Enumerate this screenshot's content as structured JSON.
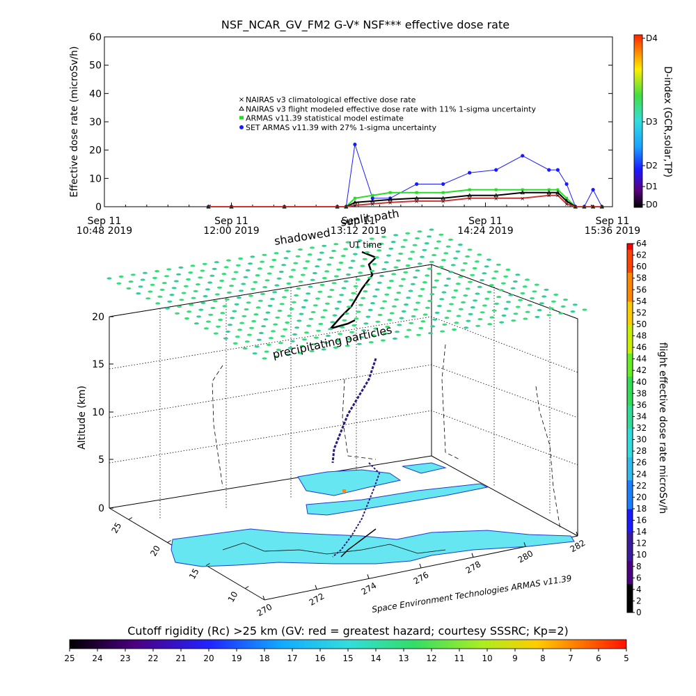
{
  "title": "NSF_NCAR_GV_FM2 G-V* NSF*** effective dose rate",
  "top_panel": {
    "ylabel": "Effective dose rate (microSv/h)",
    "yticks": [
      "0",
      "10",
      "20",
      "30",
      "40",
      "50",
      "60"
    ],
    "xticks": [
      {
        "top": "Sep 11",
        "bottom": "10:48 2019"
      },
      {
        "top": "Sep 11",
        "bottom": "12:00 2019"
      },
      {
        "top": "Sep 11",
        "bottom": "13:12 2019"
      },
      {
        "top": "Sep 11",
        "bottom": "14:24 2019"
      },
      {
        "top": "Sep 11",
        "bottom": "15:36 2019"
      }
    ],
    "xlabel": "UT time",
    "legend": [
      "NAIRAS v3 climatological effective dose rate",
      "NAIRAS v3 flight modeled effective dose rate with 11% 1-sigma uncertainty",
      "ARMAS v11.39 statistical model estimate",
      "SET ARMAS v11.39 with 27% 1-sigma uncertainty"
    ],
    "dindex_label": "D-index (GCR,solar,TP)",
    "dindex_ticks": [
      "D4",
      "D3",
      "D2",
      "D1",
      "D0"
    ]
  },
  "bottom_panel": {
    "zlabel": "Altitude (km)",
    "zticks": [
      "0",
      "5",
      "10",
      "15",
      "20"
    ],
    "lon_ticks": [
      "270",
      "272",
      "274",
      "276",
      "278",
      "280",
      "282"
    ],
    "lat_ticks": [
      "10",
      "15",
      "20",
      "25"
    ],
    "credit": "Space Environment Technologies ARMAS v11.39",
    "annot_shadowed": "shadowed",
    "annot_sunlit": "sunlit path",
    "annot_precip": "precipitating particles",
    "colorbar_label": "flight effective dose rate microSv/h",
    "colorbar_ticks": [
      "0",
      "2",
      "4",
      "6",
      "8",
      "10",
      "12",
      "14",
      "16",
      "18",
      "20",
      "22",
      "24",
      "26",
      "28",
      "30",
      "32",
      "34",
      "36",
      "38",
      "40",
      "42",
      "44",
      "46",
      "48",
      "50",
      "52",
      "54",
      "56",
      "58",
      "60",
      "62",
      "64"
    ]
  },
  "rc_bar": {
    "label": "Cutoff rigidity (Rc) >25 km (GV: red = greatest hazard; courtesy SSSRC; Kp=2)",
    "ticks": [
      "25",
      "24",
      "23",
      "22",
      "21",
      "20",
      "19",
      "18",
      "17",
      "16",
      "15",
      "14",
      "13",
      "12",
      "11",
      "10",
      "9",
      "8",
      "7",
      "6",
      "5"
    ]
  },
  "colors": {
    "set_armas": "#1a1aff",
    "armas_model": "#22dd22",
    "nairas_flight": "#000000",
    "nairas_clim": "#cc3333",
    "grid_points": "#33dd77",
    "map_fill": "#66e6f0"
  },
  "chart_data": {
    "type": "line",
    "x_unit": "UT time, Sep 11 2019",
    "x": [
      "11:47",
      "12:00",
      "12:30",
      "13:00",
      "13:05",
      "13:10",
      "13:20",
      "13:30",
      "13:45",
      "14:00",
      "14:15",
      "14:30",
      "14:45",
      "15:00",
      "15:05",
      "15:10",
      "15:15",
      "15:20",
      "15:25",
      "15:30"
    ],
    "series": [
      {
        "name": "SET ARMAS v11.39 with 27% 1-sigma uncertainty",
        "values": [
          0,
          0,
          0,
          0,
          0,
          22,
          3,
          3,
          8,
          8,
          12,
          13,
          18,
          13,
          13,
          8,
          0,
          0,
          6,
          0
        ]
      },
      {
        "name": "ARMAS v11.39 statistical model estimate",
        "values": [
          0,
          0,
          0,
          0,
          0,
          3,
          4,
          5,
          5,
          5,
          6,
          6,
          6,
          6,
          6,
          3,
          0,
          0,
          0,
          0
        ]
      },
      {
        "name": "NAIRAS v3 flight modeled effective dose rate with 11% 1-sigma uncertainty",
        "values": [
          0,
          0,
          0,
          0,
          0,
          1.5,
          2,
          2.5,
          3,
          3,
          4,
          4,
          5,
          5,
          5,
          2,
          0,
          0,
          0,
          0
        ]
      },
      {
        "name": "NAIRAS v3 climatological effective dose rate",
        "values": [
          0,
          0,
          0,
          0,
          0,
          0.5,
          1,
          1.5,
          2,
          2,
          3,
          3,
          3,
          4,
          4,
          1,
          0,
          0,
          0,
          0
        ]
      }
    ],
    "ylabel": "Effective dose rate (microSv/h)",
    "ylim": [
      0,
      60
    ],
    "legend_position": "top-center"
  }
}
